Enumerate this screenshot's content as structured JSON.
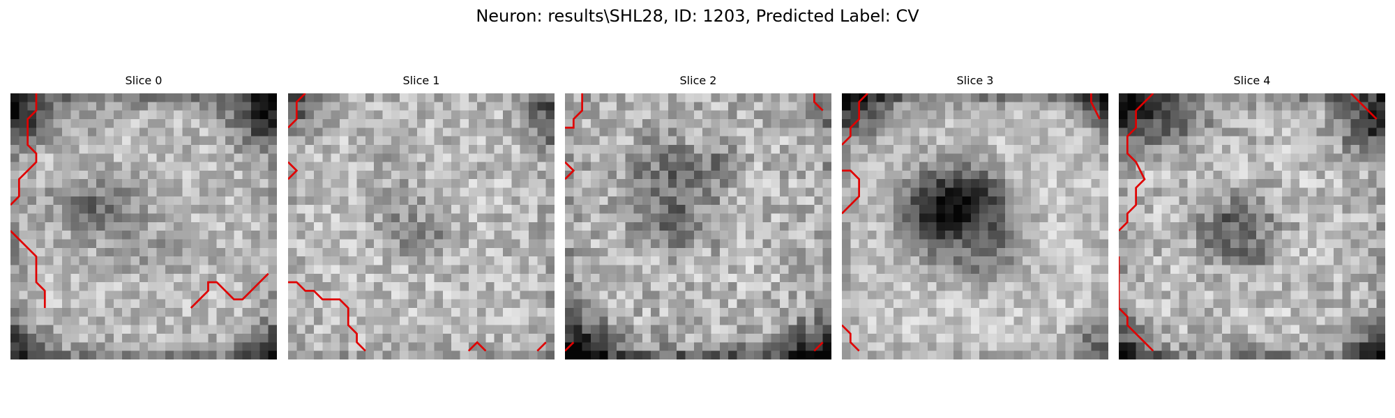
{
  "figure": {
    "title": "Neuron: results\\SHL28, ID: 1203, Predicted Label: CV",
    "colormap": "grayscale",
    "contour_color": "#e00000"
  },
  "slices": [
    {
      "title": "Slice 0"
    },
    {
      "title": "Slice 1"
    },
    {
      "title": "Slice 2"
    },
    {
      "title": "Slice 3"
    },
    {
      "title": "Slice 4"
    }
  ]
}
